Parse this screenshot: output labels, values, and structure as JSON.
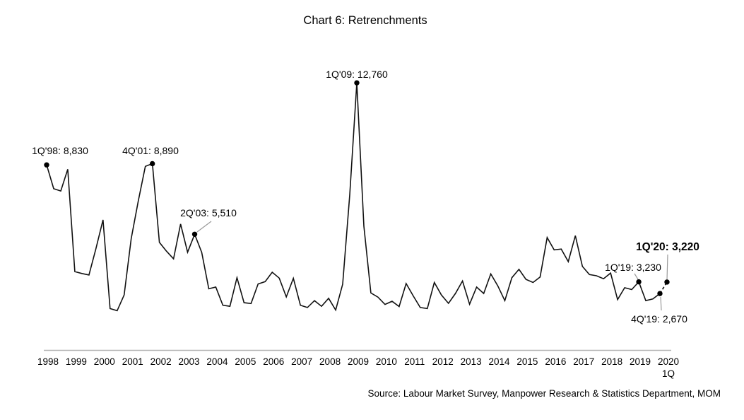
{
  "title": "Chart 6: Retrenchments",
  "source": "Source: Labour Market Survey, Manpower Research & Statistics Department, MOM",
  "chart_data": {
    "type": "line",
    "title": "Chart 6: Retrenchments",
    "x_unit": "quarter",
    "x_start": "1Q 1998",
    "x_end": "1Q 2020",
    "x_tick_labels": [
      "1998",
      "1999",
      "2000",
      "2001",
      "2002",
      "2003",
      "2004",
      "2005",
      "2006",
      "2007",
      "2008",
      "2009",
      "2010",
      "2011",
      "2012",
      "2013",
      "2014",
      "2015",
      "2016",
      "2017",
      "2018",
      "2019",
      "2020"
    ],
    "x_tick_sub_label": "1Q",
    "ylim": [
      0,
      13500
    ],
    "grid": false,
    "legend": "none",
    "line_color": "#111111",
    "marker_color": "#000000",
    "leader_color": "#9a9a9a",
    "axis_color": "#b3b3b3",
    "last_segment_dashed": true,
    "values": [
      8830,
      7690,
      7580,
      8620,
      3720,
      3630,
      3560,
      4820,
      6200,
      1950,
      1850,
      2600,
      5300,
      7100,
      8760,
      8890,
      5120,
      4700,
      4330,
      6000,
      4650,
      5510,
      4640,
      2900,
      2980,
      2110,
      2060,
      3430,
      2230,
      2190,
      3130,
      3240,
      3690,
      3410,
      2510,
      3400,
      2110,
      2000,
      2330,
      2060,
      2440,
      1880,
      3120,
      7400,
      12760,
      5900,
      2700,
      2500,
      2150,
      2300,
      2050,
      3150,
      2560,
      2000,
      1950,
      3200,
      2600,
      2200,
      2680,
      3270,
      2160,
      2980,
      2670,
      3610,
      3040,
      2330,
      3430,
      3830,
      3350,
      3200,
      3460,
      5350,
      4760,
      4800,
      4200,
      5440,
      3970,
      3580,
      3520,
      3380,
      3650,
      2380,
      2950,
      2860,
      3230,
      2330,
      2410,
      2670,
      3220
    ],
    "annotations": [
      {
        "id": "1q98",
        "q": 0,
        "value": 8830,
        "label": "1Q'98: 8,830",
        "bold": false
      },
      {
        "id": "4q01",
        "q": 15,
        "value": 8890,
        "label": "4Q'01: 8,890",
        "bold": false
      },
      {
        "id": "2q03",
        "q": 21,
        "value": 5510,
        "label": "2Q'03: 5,510",
        "bold": false
      },
      {
        "id": "1q09",
        "q": 44,
        "value": 12760,
        "label": "1Q'09: 12,760",
        "bold": false
      },
      {
        "id": "1q19",
        "q": 84,
        "value": 3230,
        "label": "1Q'19: 3,230",
        "bold": false
      },
      {
        "id": "4q19",
        "q": 87,
        "value": 2670,
        "label": "4Q'19: 2,670",
        "bold": false
      },
      {
        "id": "1q20",
        "q": 88,
        "value": 3220,
        "label": "1Q'20: 3,220",
        "bold": true
      }
    ],
    "source": "Source: Labour Market Survey, Manpower Research & Statistics Department, MOM"
  }
}
